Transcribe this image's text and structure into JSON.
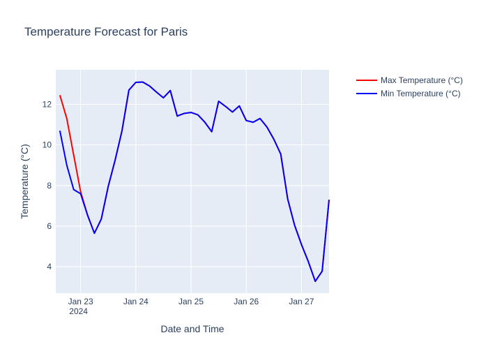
{
  "chart_data": {
    "type": "line",
    "title": "Temperature Forecast for Paris",
    "xlabel": "Date and Time",
    "ylabel": "Temperature (°C)",
    "x_ticks": [
      "Jan 23",
      "Jan 24",
      "Jan 25",
      "Jan 26",
      "Jan 27"
    ],
    "x_tick_year": "2024",
    "y_ticks": [
      4,
      6,
      8,
      10,
      12
    ],
    "xlim_days": [
      22.55,
      27.5
    ],
    "ylim": [
      2.7,
      13.7
    ],
    "grid": true,
    "legend_position": "top-right",
    "background": "#e5ecf6",
    "x_hours": [
      0,
      3,
      6,
      9,
      12,
      15,
      18,
      21,
      24,
      27,
      30,
      33,
      36,
      39,
      42,
      45,
      48,
      51,
      54,
      57,
      60,
      63,
      66,
      69,
      72,
      75,
      78,
      81,
      84,
      87,
      90,
      93,
      96,
      99,
      102,
      105,
      108,
      111,
      114,
      117
    ],
    "x_start_day": 22.625,
    "series": [
      {
        "name": "Max Temperature (°C)",
        "color": "#ff0000",
        "values": [
          12.45,
          11.3,
          9.5,
          7.7,
          6.55,
          5.65,
          6.35,
          7.95,
          9.25,
          10.7,
          12.7,
          13.08,
          13.1,
          12.9,
          12.6,
          12.32,
          12.68,
          11.42,
          11.55,
          11.6,
          11.48,
          11.12,
          10.65,
          12.15,
          11.9,
          11.62,
          11.92,
          11.2,
          11.12,
          11.3,
          10.88,
          10.28,
          9.55,
          7.35,
          6.05,
          5.1,
          4.25,
          3.28,
          3.78,
          7.3
        ]
      },
      {
        "name": "Min Temperature (°C)",
        "color": "#0000ff",
        "values": [
          10.7,
          9.0,
          7.8,
          7.6,
          6.55,
          5.65,
          6.35,
          7.95,
          9.25,
          10.7,
          12.7,
          13.08,
          13.1,
          12.9,
          12.6,
          12.32,
          12.68,
          11.42,
          11.55,
          11.6,
          11.48,
          11.12,
          10.65,
          12.15,
          11.9,
          11.62,
          11.92,
          11.2,
          11.12,
          11.3,
          10.88,
          10.28,
          9.55,
          7.35,
          6.05,
          5.1,
          4.25,
          3.28,
          3.78,
          7.3
        ]
      }
    ]
  }
}
